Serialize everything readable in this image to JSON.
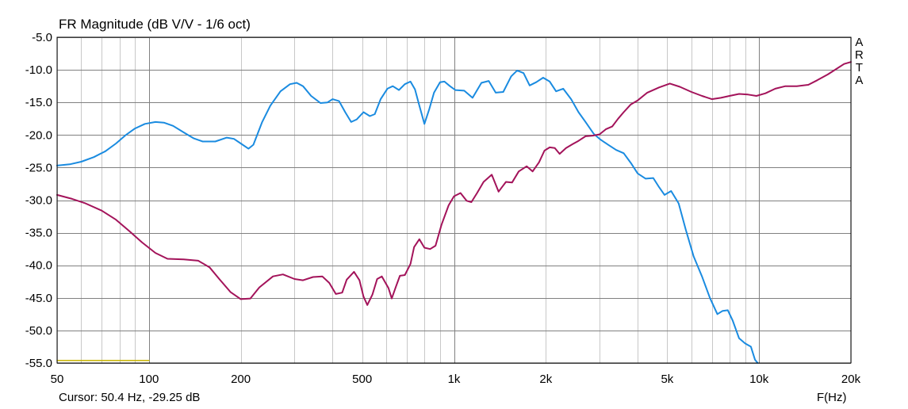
{
  "title": "FR Magnitude (dB V/V - 1/6 oct)",
  "watermark": [
    "A",
    "R",
    "T",
    "A"
  ],
  "cursor_readout": "Cursor: 50.4 Hz, -29.25 dB",
  "colors": {
    "blue_series": "#1a8be0",
    "red_series": "#a3135a",
    "marker": "#c8b400",
    "grid": "#c8c8c8"
  },
  "chart_data": {
    "type": "line",
    "title": "FR Magnitude (dB V/V - 1/6 oct)",
    "xlabel": "F(Hz)",
    "ylabel": "",
    "x_scale": "log",
    "xlim": [
      50,
      20000
    ],
    "ylim": [
      -55,
      -5
    ],
    "grid": true,
    "x_tick_labels": [
      {
        "value": 50,
        "label": "50"
      },
      {
        "value": 100,
        "label": "100"
      },
      {
        "value": 200,
        "label": "200"
      },
      {
        "value": 500,
        "label": "500"
      },
      {
        "value": 1000,
        "label": "1k"
      },
      {
        "value": 2000,
        "label": "2k"
      },
      {
        "value": 5000,
        "label": "5k"
      },
      {
        "value": 10000,
        "label": "10k"
      },
      {
        "value": 20000,
        "label": "20k"
      }
    ],
    "y_tick_labels": [
      "-5.0",
      "-10.0",
      "-15.0",
      "-20.0",
      "-25.0",
      "-30.0",
      "-35.0",
      "-40.0",
      "-45.0",
      "-50.0",
      "-55.0"
    ],
    "series": [
      {
        "color": "#1a8be0",
        "points": [
          [
            50,
            -24.7
          ],
          [
            55,
            -24.5
          ],
          [
            60,
            -24.1
          ],
          [
            66,
            -23.4
          ],
          [
            72,
            -22.5
          ],
          [
            78,
            -21.3
          ],
          [
            84,
            -20.0
          ],
          [
            90,
            -19.0
          ],
          [
            97,
            -18.3
          ],
          [
            105,
            -18.0
          ],
          [
            112,
            -18.1
          ],
          [
            120,
            -18.6
          ],
          [
            130,
            -19.6
          ],
          [
            140,
            -20.5
          ],
          [
            150,
            -21.0
          ],
          [
            165,
            -21.0
          ],
          [
            180,
            -20.4
          ],
          [
            190,
            -20.6
          ],
          [
            200,
            -21.3
          ],
          [
            212,
            -22.1
          ],
          [
            220,
            -21.5
          ],
          [
            235,
            -18.0
          ],
          [
            250,
            -15.5
          ],
          [
            270,
            -13.3
          ],
          [
            290,
            -12.2
          ],
          [
            305,
            -12.0
          ],
          [
            320,
            -12.5
          ],
          [
            340,
            -14.0
          ],
          [
            365,
            -15.1
          ],
          [
            385,
            -15.0
          ],
          [
            400,
            -14.5
          ],
          [
            420,
            -14.8
          ],
          [
            440,
            -16.5
          ],
          [
            460,
            -18.0
          ],
          [
            480,
            -17.6
          ],
          [
            505,
            -16.5
          ],
          [
            530,
            -17.1
          ],
          [
            550,
            -16.8
          ],
          [
            575,
            -14.5
          ],
          [
            605,
            -12.9
          ],
          [
            630,
            -12.5
          ],
          [
            660,
            -13.1
          ],
          [
            690,
            -12.2
          ],
          [
            720,
            -11.8
          ],
          [
            745,
            -13.0
          ],
          [
            770,
            -15.5
          ],
          [
            800,
            -18.3
          ],
          [
            830,
            -16.0
          ],
          [
            860,
            -13.5
          ],
          [
            900,
            -11.9
          ],
          [
            930,
            -11.8
          ],
          [
            970,
            -12.5
          ],
          [
            1010,
            -13.1
          ],
          [
            1080,
            -13.2
          ],
          [
            1150,
            -14.3
          ],
          [
            1230,
            -12.0
          ],
          [
            1300,
            -11.7
          ],
          [
            1370,
            -13.5
          ],
          [
            1450,
            -13.4
          ],
          [
            1540,
            -11.0
          ],
          [
            1610,
            -10.1
          ],
          [
            1690,
            -10.5
          ],
          [
            1770,
            -12.4
          ],
          [
            1860,
            -11.9
          ],
          [
            1960,
            -11.2
          ],
          [
            2060,
            -11.8
          ],
          [
            2160,
            -13.3
          ],
          [
            2280,
            -12.9
          ],
          [
            2420,
            -14.5
          ],
          [
            2560,
            -16.5
          ],
          [
            2700,
            -18.0
          ],
          [
            2870,
            -19.8
          ],
          [
            3020,
            -20.7
          ],
          [
            3200,
            -21.5
          ],
          [
            3400,
            -22.3
          ],
          [
            3600,
            -22.8
          ],
          [
            3800,
            -24.3
          ],
          [
            4000,
            -25.9
          ],
          [
            4250,
            -26.7
          ],
          [
            4500,
            -26.6
          ],
          [
            4700,
            -28.0
          ],
          [
            4900,
            -29.2
          ],
          [
            5150,
            -28.6
          ],
          [
            5450,
            -30.5
          ],
          [
            5750,
            -34.5
          ],
          [
            6100,
            -38.6
          ],
          [
            6500,
            -41.7
          ],
          [
            6900,
            -45.0
          ],
          [
            7300,
            -47.5
          ],
          [
            7600,
            -47.0
          ],
          [
            7900,
            -46.9
          ],
          [
            8200,
            -48.5
          ],
          [
            8600,
            -51.2
          ],
          [
            9000,
            -52.0
          ],
          [
            9400,
            -52.5
          ],
          [
            9700,
            -54.5
          ],
          [
            9900,
            -55.0
          ]
        ]
      },
      {
        "color": "#a3135a",
        "points": [
          [
            50,
            -29.2
          ],
          [
            56,
            -29.8
          ],
          [
            62,
            -30.5
          ],
          [
            70,
            -31.6
          ],
          [
            78,
            -33.0
          ],
          [
            86,
            -34.7
          ],
          [
            95,
            -36.5
          ],
          [
            105,
            -38.1
          ],
          [
            115,
            -39.0
          ],
          [
            130,
            -39.1
          ],
          [
            145,
            -39.3
          ],
          [
            158,
            -40.3
          ],
          [
            170,
            -42.1
          ],
          [
            185,
            -44.1
          ],
          [
            200,
            -45.2
          ],
          [
            215,
            -45.1
          ],
          [
            230,
            -43.4
          ],
          [
            255,
            -41.7
          ],
          [
            275,
            -41.4
          ],
          [
            300,
            -42.1
          ],
          [
            320,
            -42.3
          ],
          [
            345,
            -41.8
          ],
          [
            370,
            -41.7
          ],
          [
            390,
            -42.7
          ],
          [
            410,
            -44.4
          ],
          [
            430,
            -44.2
          ],
          [
            445,
            -42.2
          ],
          [
            470,
            -41.0
          ],
          [
            490,
            -42.3
          ],
          [
            505,
            -44.8
          ],
          [
            520,
            -46.1
          ],
          [
            540,
            -44.5
          ],
          [
            560,
            -42.1
          ],
          [
            580,
            -41.7
          ],
          [
            610,
            -43.5
          ],
          [
            625,
            -45.1
          ],
          [
            645,
            -43.3
          ],
          [
            665,
            -41.6
          ],
          [
            690,
            -41.5
          ],
          [
            720,
            -39.8
          ],
          [
            740,
            -37.2
          ],
          [
            770,
            -36.0
          ],
          [
            800,
            -37.3
          ],
          [
            835,
            -37.5
          ],
          [
            870,
            -37.0
          ],
          [
            910,
            -33.8
          ],
          [
            960,
            -30.8
          ],
          [
            1000,
            -29.4
          ],
          [
            1050,
            -28.9
          ],
          [
            1100,
            -30.1
          ],
          [
            1140,
            -30.3
          ],
          [
            1190,
            -28.9
          ],
          [
            1250,
            -27.2
          ],
          [
            1330,
            -26.1
          ],
          [
            1400,
            -28.7
          ],
          [
            1480,
            -27.2
          ],
          [
            1550,
            -27.3
          ],
          [
            1630,
            -25.6
          ],
          [
            1730,
            -24.8
          ],
          [
            1810,
            -25.6
          ],
          [
            1900,
            -24.2
          ],
          [
            1980,
            -22.4
          ],
          [
            2060,
            -21.9
          ],
          [
            2140,
            -22.0
          ],
          [
            2220,
            -22.9
          ],
          [
            2330,
            -22.0
          ],
          [
            2450,
            -21.4
          ],
          [
            2560,
            -20.9
          ],
          [
            2700,
            -20.2
          ],
          [
            2850,
            -20.1
          ],
          [
            3000,
            -19.9
          ],
          [
            3150,
            -19.1
          ],
          [
            3300,
            -18.7
          ],
          [
            3450,
            -17.5
          ],
          [
            3600,
            -16.5
          ],
          [
            3800,
            -15.3
          ],
          [
            4000,
            -14.7
          ],
          [
            4300,
            -13.5
          ],
          [
            4700,
            -12.7
          ],
          [
            5100,
            -12.1
          ],
          [
            5500,
            -12.6
          ],
          [
            6000,
            -13.4
          ],
          [
            6500,
            -14.0
          ],
          [
            7000,
            -14.5
          ],
          [
            7500,
            -14.3
          ],
          [
            8000,
            -14.0
          ],
          [
            8600,
            -13.7
          ],
          [
            9200,
            -13.8
          ],
          [
            9800,
            -14.0
          ],
          [
            10500,
            -13.6
          ],
          [
            11300,
            -12.9
          ],
          [
            12200,
            -12.5
          ],
          [
            13300,
            -12.5
          ],
          [
            14500,
            -12.3
          ],
          [
            15500,
            -11.6
          ],
          [
            16800,
            -10.7
          ],
          [
            18000,
            -9.8
          ],
          [
            19000,
            -9.1
          ],
          [
            20000,
            -8.8
          ]
        ]
      },
      {
        "color": "#c8b400",
        "points": [
          [
            50,
            -54.6
          ],
          [
            100,
            -54.6
          ]
        ]
      }
    ]
  }
}
